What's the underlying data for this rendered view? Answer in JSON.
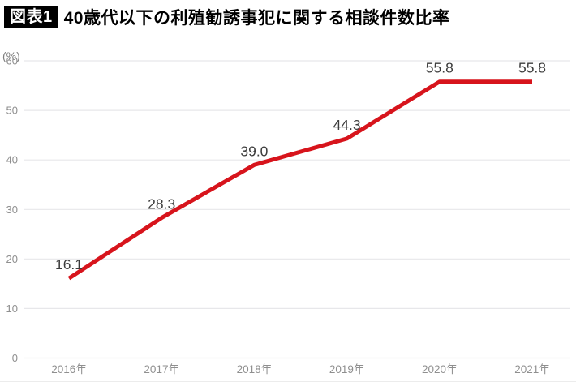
{
  "header": {
    "badge": "図表1",
    "title": "40歳代以下の利殖勧誘事犯に関する相談件数比率"
  },
  "chart_data": {
    "type": "line",
    "title": "40歳代以下の利殖勧誘事犯に関する相談件数比率",
    "unit_label": "(%)",
    "categories": [
      "2016年",
      "2017年",
      "2018年",
      "2019年",
      "2020年",
      "2021年"
    ],
    "values": [
      16.1,
      28.3,
      39.0,
      44.3,
      55.8,
      55.8
    ],
    "value_labels": [
      "16.1",
      "28.3",
      "39.0",
      "44.3",
      "55.8",
      "55.8"
    ],
    "ytick_labels": [
      "0",
      "10",
      "20",
      "30",
      "40",
      "50",
      "60"
    ],
    "ylim": [
      0,
      60
    ],
    "ytick_step": 10,
    "grid": "horizontal",
    "legend": "none",
    "colors": {
      "line": "#d7141c",
      "grid": "#e7e7ea",
      "axis_text": "#8f8f8f",
      "data_label": "#3c3c3c"
    }
  }
}
